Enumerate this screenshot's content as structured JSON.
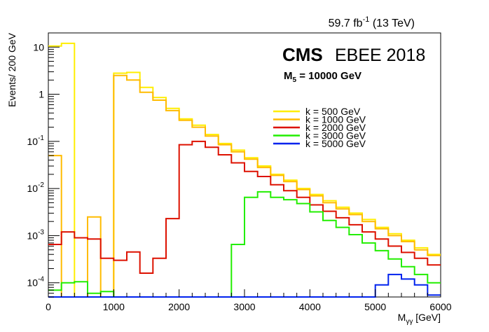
{
  "header": {
    "lumi_value": "59.7 fb",
    "lumi_exp": "-1",
    "lumi_energy": "(13 TeV)"
  },
  "label": {
    "experiment": "CMS",
    "category": "EBEE 2018",
    "param_main": "M",
    "param_sub": "5",
    "param_rest": " = 10000 GeV"
  },
  "chart_data": {
    "type": "line",
    "xlabel_main": "M",
    "xlabel_sub": "γγ",
    "xlabel_rest": " [GeV]",
    "ylabel": "Events/ 200 GeV",
    "xlim": [
      0,
      6000
    ],
    "ylim": [
      5e-05,
      20
    ],
    "yscale": "log",
    "grid": false,
    "legend_position": "top-right",
    "x_ticks": [
      0,
      1000,
      2000,
      3000,
      4000,
      5000,
      6000
    ],
    "x_tick_labels": [
      "0",
      "1000",
      "2000",
      "3000",
      "4000",
      "5000",
      "6000"
    ],
    "y_ticks": [
      {
        "value": 10,
        "base": "10",
        "exp": ""
      },
      {
        "value": 1,
        "base": "1",
        "exp": ""
      },
      {
        "value": 0.1,
        "base": "10",
        "exp": "-1"
      },
      {
        "value": 0.01,
        "base": "10",
        "exp": "-2"
      },
      {
        "value": 0.001,
        "base": "10",
        "exp": "-3"
      },
      {
        "value": 0.0001,
        "base": "10",
        "exp": "-4"
      }
    ],
    "bin_edges": [
      0,
      200,
      400,
      600,
      800,
      1000,
      1200,
      1400,
      1600,
      1800,
      2000,
      2200,
      2400,
      2600,
      2800,
      3000,
      3200,
      3400,
      3600,
      3800,
      4000,
      4200,
      4400,
      4600,
      4800,
      5000,
      5200,
      5400,
      5600,
      5800,
      6000
    ],
    "series": [
      {
        "name": "k = 500 GeV",
        "color": "#ffee00",
        "values": [
          10.5,
          12,
          0,
          0,
          0,
          2.8,
          2.9,
          1.4,
          0.85,
          0.5,
          0.3,
          0.22,
          0.14,
          0.09,
          0.065,
          0.045,
          0.03,
          0.02,
          0.015,
          0.01,
          0.0075,
          0.0055,
          0.004,
          0.003,
          0.0022,
          0.0015,
          0.0011,
          0.0008,
          0.00055,
          0.0004
        ]
      },
      {
        "name": "k = 1000 GeV",
        "color": "#ffbb00",
        "values": [
          0.05,
          0,
          0,
          0.0025,
          0,
          2.5,
          2.0,
          1.1,
          0.75,
          0.45,
          0.28,
          0.2,
          0.13,
          0.085,
          0.06,
          0.042,
          0.028,
          0.019,
          0.014,
          0.0095,
          0.007,
          0.005,
          0.0037,
          0.0028,
          0.002,
          0.0014,
          0.001,
          0.00075,
          0.0005,
          0.00038
        ]
      },
      {
        "name": "k = 2000 GeV",
        "color": "#dd1100",
        "values": [
          0.00065,
          0.0012,
          0.0009,
          0.00085,
          0.00033,
          0.0003,
          0.00045,
          0.00016,
          0.00033,
          0.0023,
          0.085,
          0.1,
          0.075,
          0.052,
          0.035,
          0.023,
          0.018,
          0.012,
          0.009,
          0.0065,
          0.0045,
          0.0033,
          0.0024,
          0.0017,
          0.0012,
          0.00085,
          0.0006,
          0.00044,
          0.00033,
          0.00024
        ]
      },
      {
        "name": "k = 3000 GeV",
        "color": "#22ee00",
        "values": [
          7e-05,
          0.0001,
          0.000105,
          6e-05,
          6.5e-05,
          0,
          0,
          0,
          0,
          0,
          0,
          0,
          0,
          0,
          0.00065,
          0.0065,
          0.0085,
          0.0065,
          0.0058,
          0.0048,
          0.0032,
          0.0021,
          0.0015,
          0.00105,
          0.0007,
          0.00048,
          0.00032,
          0.00022,
          0.00015,
          0.0001
        ]
      },
      {
        "name": "k = 5000 GeV",
        "color": "#0022ee",
        "values": [
          0,
          0,
          0,
          0,
          0,
          0,
          0,
          0,
          0,
          0,
          0,
          0,
          0,
          0,
          0,
          0,
          0,
          0,
          0,
          0,
          0,
          0,
          0,
          0,
          0,
          9e-05,
          0.00015,
          0.00012,
          9e-05,
          5.5e-05
        ]
      }
    ]
  }
}
